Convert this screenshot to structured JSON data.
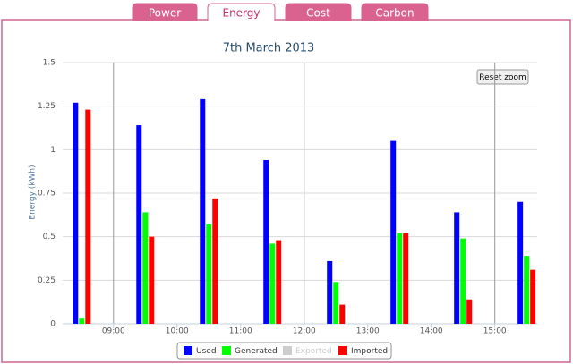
{
  "tabs": [
    "Power",
    "Energy",
    "Cost",
    "Carbon"
  ],
  "active_tab": 1,
  "reset_zoom": "Reset zoom",
  "chart_data": {
    "type": "bar",
    "title": "7th March 2013",
    "y_label": "Energy (kWh)",
    "x": [
      "08:30",
      "09:30",
      "10:30",
      "11:30",
      "12:30",
      "13:30",
      "14:30",
      "15:30"
    ],
    "xlim": [
      "08:12",
      "15:40"
    ],
    "xticks": [
      "09:00",
      "10:00",
      "11:00",
      "12:00",
      "13:00",
      "14:00",
      "15:00"
    ],
    "x_grid_lines": [
      "09:00",
      "12:00",
      "15:00"
    ],
    "ylim": [
      0,
      1.5
    ],
    "yticks": [
      0,
      0.25,
      0.5,
      0.75,
      1,
      1.25,
      1.5
    ],
    "grid": true,
    "series": [
      {
        "name": "Used",
        "color": "#0000ff",
        "visible": true,
        "values": [
          1.27,
          1.14,
          1.29,
          0.94,
          0.36,
          1.05,
          0.64,
          0.7
        ]
      },
      {
        "name": "Generated",
        "color": "#00ff00",
        "visible": true,
        "values": [
          0.03,
          0.64,
          0.57,
          0.46,
          0.24,
          0.52,
          0.49,
          0.39
        ]
      },
      {
        "name": "Exported",
        "color": "#cccccc",
        "visible": false,
        "values": [
          0,
          0,
          0,
          0,
          0,
          0,
          0,
          0
        ]
      },
      {
        "name": "Imported",
        "color": "#ff0000",
        "visible": true,
        "values": [
          1.23,
          0.5,
          0.72,
          0.48,
          0.11,
          0.52,
          0.14,
          0.31
        ]
      }
    ],
    "legend": "bottom"
  }
}
